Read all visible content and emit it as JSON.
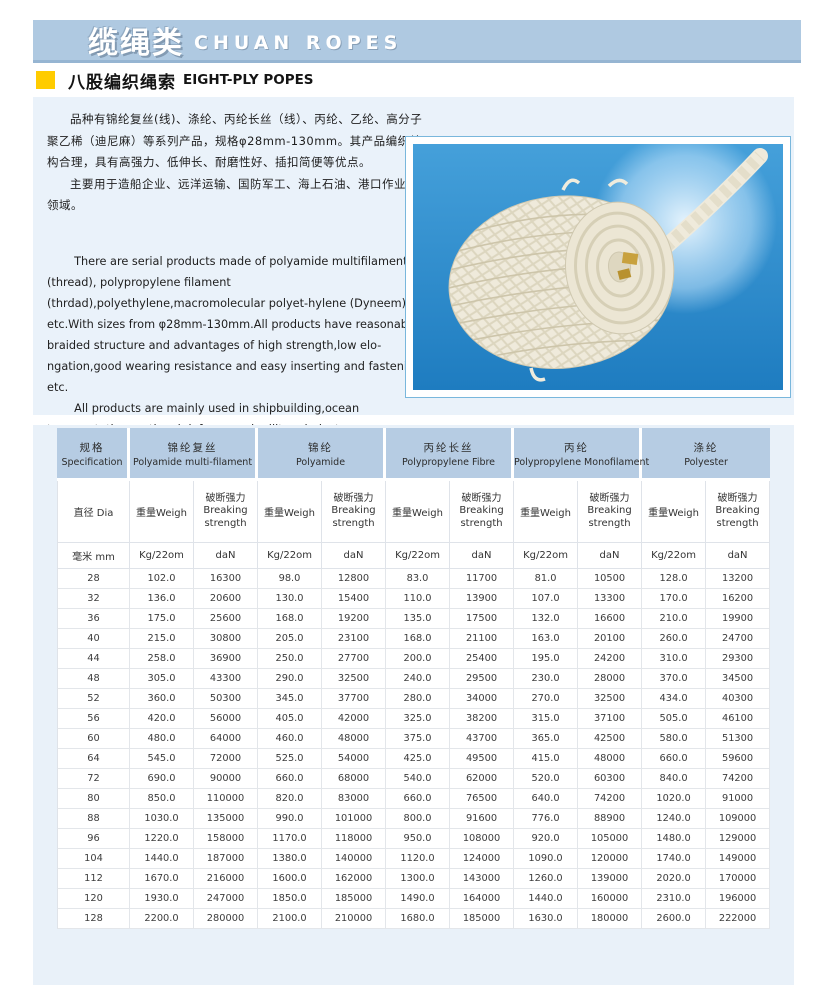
{
  "banner": {
    "title_zh": "缆绳类",
    "title_en": "CHUAN ROPES"
  },
  "subtitle": {
    "zh": "八股编织绳索",
    "en": "EIGHT-PLY POPES"
  },
  "intro": {
    "zh_para1": "品种有锦纶复丝(线)、涤纶、丙纶长丝（线）、丙纶、乙纶、高分子聚乙稀（迪尼麻）等系列产品，规格φ28mm-130mm。其产品编织结构合理，具有高强力、低伸长、耐磨性好、插扣简便等优点。",
    "zh_para2": "主要用于造船企业、远洋运输、国防军工、海上石油、港口作业等领域。",
    "en_para1": "There are serial products made of polyamide multifilament (thread), polypropylene filament (thrdad),polyethylene,macromolecular polyet-hylene (Dyneem) etc.With sizes from φ28mm-130mm.All products have reasonable braided structure and advantages of high strength,low elo-ngation,good wearing resistance and easy  inserting and fastening etc.",
    "en_para2": "All products are mainly used in shipbuilding,ocean transportation, national defense and military industry,ocean petroleum,harbor works etc."
  },
  "photo": {
    "label": "eight-ply braided rope coil"
  },
  "colors": {
    "banner_bg": "#afc9e1",
    "accent_yellow": "#ffcc00",
    "panel_bg": "#eaf2fa",
    "header_cell_bg": "#b6cce3",
    "photo_bg": "#2f8fd2"
  },
  "table": {
    "groups": [
      {
        "zh": "规格",
        "en": "Specification"
      },
      {
        "zh": "锦纶复丝",
        "en": "Polyamide multi-filament"
      },
      {
        "zh": "锦纶",
        "en": "Polyamide"
      },
      {
        "zh": "丙纶长丝",
        "en": "Polypropylene Fibre"
      },
      {
        "zh": "丙纶",
        "en": "Polypropylene Monofilament"
      },
      {
        "zh": "涤纶",
        "en": "Polyester"
      }
    ],
    "sub_dia": "直径 Dia",
    "sub_weight": "重量Weigh",
    "sub_strength_zh": "破断强力",
    "sub_strength_en": "Breaking strength",
    "unit_mm": "毫米 mm",
    "unit_weight": "Kg/22om",
    "unit_strength": "daN",
    "rows": [
      [
        "28",
        "102.0",
        "16300",
        "98.0",
        "12800",
        "83.0",
        "11700",
        "81.0",
        "10500",
        "128.0",
        "13200"
      ],
      [
        "32",
        "136.0",
        "20600",
        "130.0",
        "15400",
        "110.0",
        "13900",
        "107.0",
        "13300",
        "170.0",
        "16200"
      ],
      [
        "36",
        "175.0",
        "25600",
        "168.0",
        "19200",
        "135.0",
        "17500",
        "132.0",
        "16600",
        "210.0",
        "19900"
      ],
      [
        "40",
        "215.0",
        "30800",
        "205.0",
        "23100",
        "168.0",
        "21100",
        "163.0",
        "20100",
        "260.0",
        "24700"
      ],
      [
        "44",
        "258.0",
        "36900",
        "250.0",
        "27700",
        "200.0",
        "25400",
        "195.0",
        "24200",
        "310.0",
        "29300"
      ],
      [
        "48",
        "305.0",
        "43300",
        "290.0",
        "32500",
        "240.0",
        "29500",
        "230.0",
        "28000",
        "370.0",
        "34500"
      ],
      [
        "52",
        "360.0",
        "50300",
        "345.0",
        "37700",
        "280.0",
        "34000",
        "270.0",
        "32500",
        "434.0",
        "40300"
      ],
      [
        "56",
        "420.0",
        "56000",
        "405.0",
        "42000",
        "325.0",
        "38200",
        "315.0",
        "37100",
        "505.0",
        "46100"
      ],
      [
        "60",
        "480.0",
        "64000",
        "460.0",
        "48000",
        "375.0",
        "43700",
        "365.0",
        "42500",
        "580.0",
        "51300"
      ],
      [
        "64",
        "545.0",
        "72000",
        "525.0",
        "54000",
        "425.0",
        "49500",
        "415.0",
        "48000",
        "660.0",
        "59600"
      ],
      [
        "72",
        "690.0",
        "90000",
        "660.0",
        "68000",
        "540.0",
        "62000",
        "520.0",
        "60300",
        "840.0",
        "74200"
      ],
      [
        "80",
        "850.0",
        "110000",
        "820.0",
        "83000",
        "660.0",
        "76500",
        "640.0",
        "74200",
        "1020.0",
        "91000"
      ],
      [
        "88",
        "1030.0",
        "135000",
        "990.0",
        "101000",
        "800.0",
        "91600",
        "776.0",
        "88900",
        "1240.0",
        "109000"
      ],
      [
        "96",
        "1220.0",
        "158000",
        "1170.0",
        "118000",
        "950.0",
        "108000",
        "920.0",
        "105000",
        "1480.0",
        "129000"
      ],
      [
        "104",
        "1440.0",
        "187000",
        "1380.0",
        "140000",
        "1120.0",
        "124000",
        "1090.0",
        "120000",
        "1740.0",
        "149000"
      ],
      [
        "112",
        "1670.0",
        "216000",
        "1600.0",
        "162000",
        "1300.0",
        "143000",
        "1260.0",
        "139000",
        "2020.0",
        "170000"
      ],
      [
        "120",
        "1930.0",
        "247000",
        "1850.0",
        "185000",
        "1490.0",
        "164000",
        "1440.0",
        "160000",
        "2310.0",
        "196000"
      ],
      [
        "128",
        "2200.0",
        "280000",
        "2100.0",
        "210000",
        "1680.0",
        "185000",
        "1630.0",
        "180000",
        "2600.0",
        "222000"
      ]
    ]
  }
}
